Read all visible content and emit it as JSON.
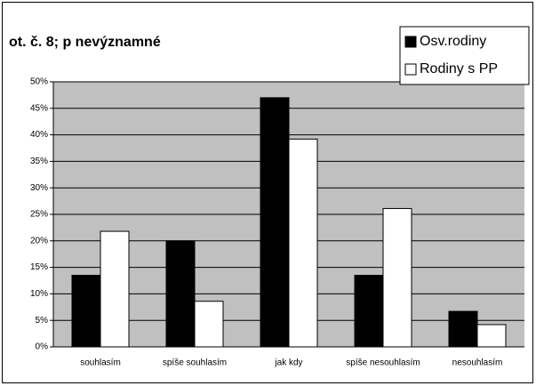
{
  "chart_data": {
    "type": "bar",
    "title": "ot. č. 8; p nevýznamné",
    "categories": [
      "souhlasím",
      "spíše souhlasím",
      "jak kdy",
      "spíše nesouhlasím",
      "nesouhlasím"
    ],
    "series": [
      {
        "name": "Osv.rodiny",
        "color": "#000000",
        "values": [
          13.5,
          20,
          47,
          13.5,
          6.7
        ]
      },
      {
        "name": "Rodiny s PP",
        "color": "#ffffff",
        "values": [
          21.8,
          8.6,
          39.2,
          26.1,
          4.2
        ]
      }
    ],
    "ylim": [
      0,
      50
    ],
    "yticks": [
      {
        "value": 0,
        "label": "0%"
      },
      {
        "value": 5,
        "label": "5%"
      },
      {
        "value": 10,
        "label": "10%"
      },
      {
        "value": 15,
        "label": "15%"
      },
      {
        "value": 20,
        "label": "20%"
      },
      {
        "value": 25,
        "label": "25%"
      },
      {
        "value": 30,
        "label": "30%"
      },
      {
        "value": 35,
        "label": "35%"
      },
      {
        "value": 40,
        "label": "40%"
      },
      {
        "value": 45,
        "label": "45%"
      },
      {
        "value": 50,
        "label": "50%"
      }
    ],
    "grid": true,
    "legend": "top-right",
    "background": "#c0c0c0"
  }
}
